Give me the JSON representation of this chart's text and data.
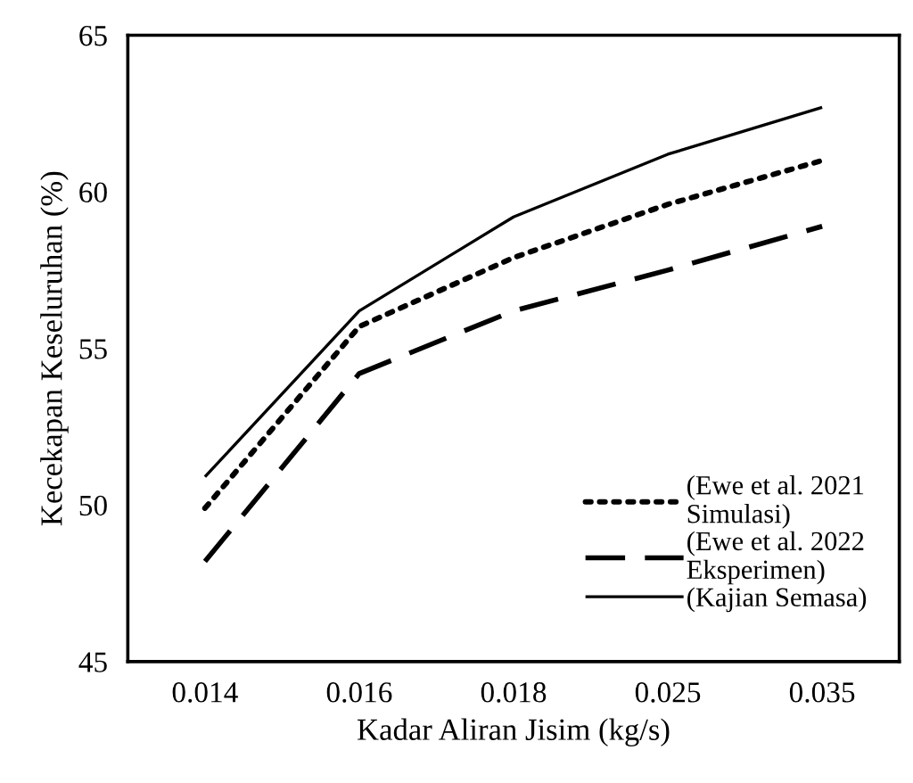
{
  "chart_data": {
    "type": "line",
    "xlabel": "Kadar Aliran Jisim (kg/s)",
    "ylabel": "Kecekapan Keseluruhan (%)",
    "categories": [
      "0.014",
      "0.016",
      "0.018",
      "0.025",
      "0.035"
    ],
    "series": [
      {
        "name": "(Ewe et al. 2021\nSimulasi)",
        "color": "#000000",
        "line_style": "dotted",
        "values": [
          49.9,
          55.7,
          57.9,
          59.6,
          61.0
        ]
      },
      {
        "name": "(Ewe et al. 2022\nEksperimen)",
        "color": "#000000",
        "line_style": "dashed",
        "values": [
          48.2,
          54.2,
          56.2,
          57.5,
          58.9
        ]
      },
      {
        "name": "(Kajian Semasa)",
        "color": "#000000",
        "line_style": "solid",
        "values": [
          50.9,
          56.2,
          59.2,
          61.2,
          62.7
        ]
      }
    ],
    "ylim": [
      45,
      65
    ],
    "yticks": [
      45,
      50,
      55,
      60,
      65
    ],
    "grid": false,
    "legend": "bottom right",
    "marker": "none"
  }
}
